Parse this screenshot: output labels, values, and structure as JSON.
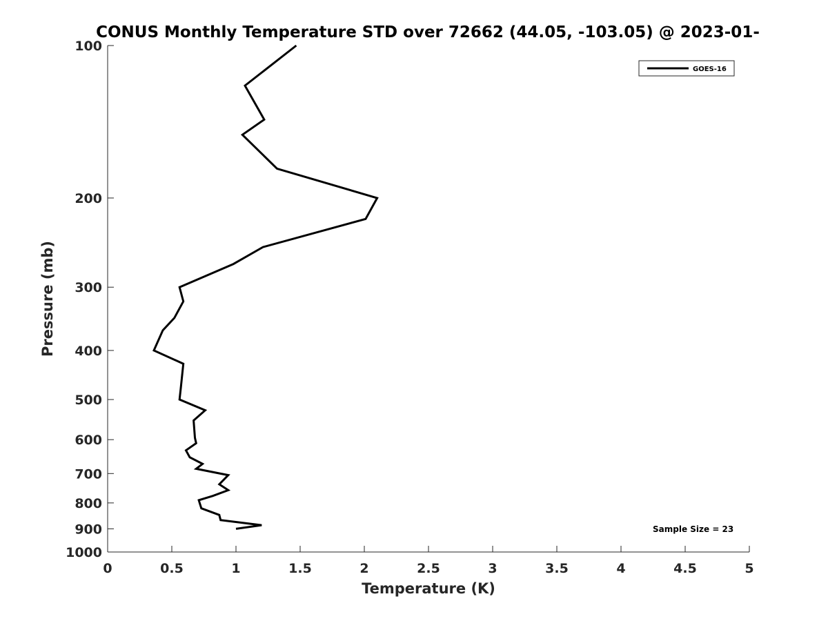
{
  "chart_data": {
    "type": "line",
    "title": "CONUS Monthly Temperature STD over 72662 (44.05, -103.05) @ 2023-01-",
    "xlabel": "Temperature (K)",
    "ylabel": "Pressure (mb)",
    "xlim": [
      0,
      5
    ],
    "ylim": [
      100,
      1000
    ],
    "y_scale": "log",
    "y_reversed": true,
    "grid": false,
    "legend_position": "top-right",
    "x_ticks": [
      0,
      0.5,
      1,
      1.5,
      2,
      2.5,
      3,
      3.5,
      4,
      4.5,
      5
    ],
    "x_tick_labels": [
      "0",
      "0.5",
      "1",
      "1.5",
      "2",
      "2.5",
      "3",
      "3.5",
      "4",
      "4.5",
      "5"
    ],
    "y_ticks": [
      100,
      200,
      300,
      400,
      500,
      600,
      700,
      800,
      900,
      1000
    ],
    "y_tick_labels": [
      "100",
      "200",
      "300",
      "400",
      "500",
      "600",
      "700",
      "800",
      "900",
      "1000"
    ],
    "series": [
      {
        "name": "GOES-16",
        "color": "#000000",
        "points": [
          [
            1.47,
            100
          ],
          [
            1.07,
            120
          ],
          [
            1.22,
            140
          ],
          [
            1.05,
            150
          ],
          [
            1.32,
            175
          ],
          [
            2.1,
            200
          ],
          [
            2.01,
            220
          ],
          [
            1.21,
            250
          ],
          [
            0.98,
            270
          ],
          [
            0.56,
            300
          ],
          [
            0.59,
            320
          ],
          [
            0.52,
            345
          ],
          [
            0.43,
            365
          ],
          [
            0.36,
            400
          ],
          [
            0.59,
            425
          ],
          [
            0.57,
            475
          ],
          [
            0.56,
            500
          ],
          [
            0.76,
            525
          ],
          [
            0.67,
            550
          ],
          [
            0.68,
            595
          ],
          [
            0.69,
            610
          ],
          [
            0.61,
            630
          ],
          [
            0.64,
            650
          ],
          [
            0.74,
            670
          ],
          [
            0.69,
            685
          ],
          [
            0.94,
            705
          ],
          [
            0.87,
            735
          ],
          [
            0.94,
            755
          ],
          [
            0.82,
            775
          ],
          [
            0.71,
            790
          ],
          [
            0.73,
            820
          ],
          [
            0.87,
            845
          ],
          [
            0.88,
            865
          ],
          [
            1.2,
            885
          ],
          [
            1.0,
            900
          ]
        ]
      }
    ],
    "annotations": [
      "Sample Size = 23"
    ]
  }
}
